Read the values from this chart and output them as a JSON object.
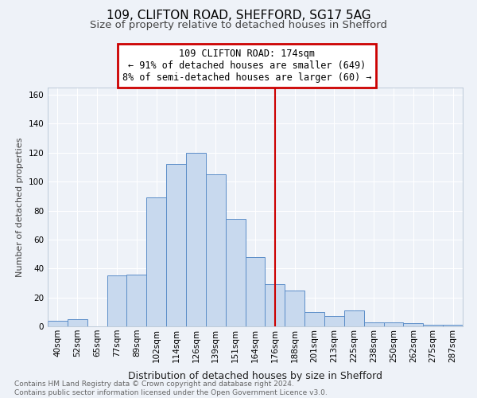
{
  "title1": "109, CLIFTON ROAD, SHEFFORD, SG17 5AG",
  "title2": "Size of property relative to detached houses in Shefford",
  "xlabel": "Distribution of detached houses by size in Shefford",
  "ylabel": "Number of detached properties",
  "footnote": "Contains HM Land Registry data © Crown copyright and database right 2024.\nContains public sector information licensed under the Open Government Licence v3.0.",
  "bins": [
    "40sqm",
    "52sqm",
    "65sqm",
    "77sqm",
    "89sqm",
    "102sqm",
    "114sqm",
    "126sqm",
    "139sqm",
    "151sqm",
    "164sqm",
    "176sqm",
    "188sqm",
    "201sqm",
    "213sqm",
    "225sqm",
    "238sqm",
    "250sqm",
    "262sqm",
    "275sqm",
    "287sqm"
  ],
  "values": [
    4,
    5,
    0,
    35,
    36,
    89,
    112,
    120,
    105,
    74,
    48,
    29,
    25,
    10,
    7,
    11,
    3,
    3,
    2,
    1,
    1
  ],
  "bar_color": "#c8d9ee",
  "bar_edge_color": "#5b8dc8",
  "vline_x_index": 11,
  "vline_color": "#cc0000",
  "annotation_title": "109 CLIFTON ROAD: 174sqm",
  "annotation_line1": "← 91% of detached houses are smaller (649)",
  "annotation_line2": "8% of semi-detached houses are larger (60) →",
  "annotation_box_color": "#cc0000",
  "background_color": "#eef2f8",
  "ylim": [
    0,
    165
  ],
  "yticks": [
    0,
    20,
    40,
    60,
    80,
    100,
    120,
    140,
    160
  ],
  "grid_color": "#ffffff",
  "title1_fontsize": 11,
  "title2_fontsize": 9.5,
  "ann_fontsize": 8.5,
  "ylabel_fontsize": 8,
  "xlabel_fontsize": 9,
  "tick_fontsize": 7.5,
  "footnote_fontsize": 6.5
}
